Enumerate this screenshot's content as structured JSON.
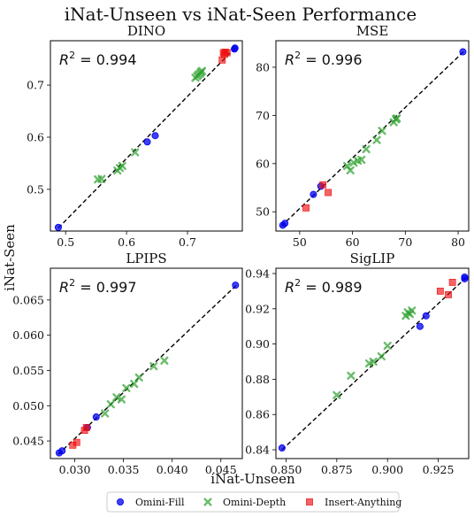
{
  "figure": {
    "title": "iNat-Unseen vs iNat-Seen Performance",
    "xlabel": "iNat-Unseen",
    "ylabel": "iNat-Seen"
  },
  "legend": {
    "placement": "bottom-center",
    "entries": [
      {
        "label": "Omini-Fill",
        "color": "#0000ee",
        "marker": "circle"
      },
      {
        "label": "Omini-Depth",
        "color": "#2ca02c",
        "marker": "x"
      },
      {
        "label": "Insert-Anything",
        "color": "#ee1111",
        "marker": "square"
      }
    ]
  },
  "chart_data": [
    {
      "type": "scatter",
      "title": "DINO",
      "annotation": "R^2 = 0.994",
      "xlim": [
        0.475,
        0.79
      ],
      "ylim": [
        0.42,
        0.785
      ],
      "xticks": [
        0.5,
        0.6,
        0.7
      ],
      "xticklabels": [
        "0.5",
        "0.6",
        "0.7"
      ],
      "yticks": [
        0.5,
        0.6,
        0.7
      ],
      "yticklabels": [
        "0.5",
        "0.6",
        "0.7"
      ],
      "grid": false,
      "fit_line": {
        "x": [
          0.488,
          0.778
        ],
        "y": [
          0.426,
          0.771
        ],
        "style": "dashed"
      },
      "series": [
        {
          "name": "Omini-Fill",
          "x": [
            0.488,
            0.634,
            0.647,
            0.777,
            0.778
          ],
          "y": [
            0.427,
            0.591,
            0.603,
            0.769,
            0.771
          ]
        },
        {
          "name": "Omini-Depth",
          "x": [
            0.553,
            0.559,
            0.585,
            0.589,
            0.593,
            0.614,
            0.713,
            0.716,
            0.718,
            0.721,
            0.722,
            0.724
          ],
          "y": [
            0.519,
            0.52,
            0.536,
            0.541,
            0.545,
            0.571,
            0.714,
            0.717,
            0.72,
            0.722,
            0.725,
            0.727
          ]
        },
        {
          "name": "Insert-Anything",
          "x": [
            0.757,
            0.759,
            0.761,
            0.762,
            0.765
          ],
          "y": [
            0.748,
            0.762,
            0.759,
            0.763,
            0.762
          ]
        }
      ]
    },
    {
      "type": "scatter",
      "title": "MSE",
      "annotation": "R^2 = 0.996",
      "xlim": [
        45.5,
        82
      ],
      "ylim": [
        46,
        85.5
      ],
      "xticks": [
        50,
        60,
        70,
        80
      ],
      "xticklabels": [
        "50",
        "60",
        "70",
        "80"
      ],
      "yticks": [
        50,
        60,
        70,
        80
      ],
      "yticklabels": [
        "50",
        "60",
        "70",
        "80"
      ],
      "grid": false,
      "fit_line": {
        "x": [
          46.5,
          81
        ],
        "y": [
          47.0,
          83.2
        ],
        "style": "dashed"
      },
      "series": [
        {
          "name": "Omini-Fill",
          "x": [
            46.8,
            47.2,
            52.6,
            54.0,
            80.9
          ],
          "y": [
            47.2,
            47.6,
            53.6,
            55.3,
            83.2
          ]
        },
        {
          "name": "Omini-Depth",
          "x": [
            59.0,
            59.6,
            60.2,
            61.0,
            61.7,
            62.6,
            64.6,
            65.6,
            67.8,
            68.2,
            68.4
          ],
          "y": [
            59.5,
            58.6,
            60.2,
            60.6,
            60.8,
            63.0,
            64.9,
            66.8,
            68.6,
            69.2,
            69.4
          ]
        },
        {
          "name": "Insert-Anything",
          "x": [
            51.2,
            54.4,
            55.4
          ],
          "y": [
            50.8,
            55.6,
            54.0
          ]
        }
      ]
    },
    {
      "type": "scatter",
      "title": "LPIPS",
      "annotation": "R^2 = 0.997",
      "xlim": [
        0.0275,
        0.0472
      ],
      "ylim": [
        0.0425,
        0.0695
      ],
      "xticks": [
        0.03,
        0.035,
        0.04,
        0.045
      ],
      "xticklabels": [
        "0.030",
        "0.035",
        "0.040",
        "0.045"
      ],
      "yticks": [
        0.045,
        0.05,
        0.055,
        0.06,
        0.065
      ],
      "yticklabels": [
        "0.045",
        "0.050",
        "0.055",
        "0.060",
        "0.065"
      ],
      "grid": false,
      "fit_line": {
        "x": [
          0.0283,
          0.0466
        ],
        "y": [
          0.0431,
          0.0671
        ],
        "style": "dashed"
      },
      "series": [
        {
          "name": "Omini-Fill",
          "x": [
            0.0284,
            0.0287,
            0.0313,
            0.0322,
            0.0465
          ],
          "y": [
            0.0433,
            0.0436,
            0.0469,
            0.0484,
            0.0671
          ]
        },
        {
          "name": "Omini-Depth",
          "x": [
            0.0331,
            0.0337,
            0.0343,
            0.0348,
            0.0353,
            0.0361,
            0.0366,
            0.0381,
            0.0392
          ],
          "y": [
            0.0489,
            0.0502,
            0.0512,
            0.0509,
            0.0525,
            0.0531,
            0.054,
            0.0556,
            0.0564
          ]
        },
        {
          "name": "Insert-Anything",
          "x": [
            0.0298,
            0.0302,
            0.031,
            0.0312
          ],
          "y": [
            0.0444,
            0.0448,
            0.0465,
            0.0469
          ]
        }
      ]
    },
    {
      "type": "scatter",
      "title": "SigLIP",
      "annotation": "R^2 = 0.989",
      "xlim": [
        0.845,
        0.94
      ],
      "ylim": [
        0.835,
        0.943
      ],
      "xticks": [
        0.85,
        0.875,
        0.9,
        0.925
      ],
      "xticklabels": [
        "0.850",
        "0.875",
        "0.900",
        "0.925"
      ],
      "yticks": [
        0.84,
        0.86,
        0.88,
        0.9,
        0.92,
        0.94
      ],
      "yticklabels": [
        "0.84",
        "0.86",
        "0.88",
        "0.90",
        "0.92",
        "0.94"
      ],
      "grid": false,
      "fit_line": {
        "x": [
          0.848,
          0.939
        ],
        "y": [
          0.84,
          0.938
        ],
        "style": "dashed"
      },
      "series": [
        {
          "name": "Omini-Fill",
          "x": [
            0.848,
            0.916,
            0.919,
            0.938,
            0.938
          ],
          "y": [
            0.841,
            0.91,
            0.916,
            0.937,
            0.938
          ]
        },
        {
          "name": "Omini-Depth",
          "x": [
            0.875,
            0.882,
            0.891,
            0.893,
            0.897,
            0.9,
            0.909,
            0.91,
            0.911,
            0.912
          ],
          "y": [
            0.871,
            0.882,
            0.889,
            0.89,
            0.893,
            0.899,
            0.916,
            0.918,
            0.917,
            0.919
          ]
        },
        {
          "name": "Insert-Anything",
          "x": [
            0.926,
            0.93,
            0.932
          ],
          "y": [
            0.93,
            0.928,
            0.935
          ]
        }
      ]
    }
  ]
}
